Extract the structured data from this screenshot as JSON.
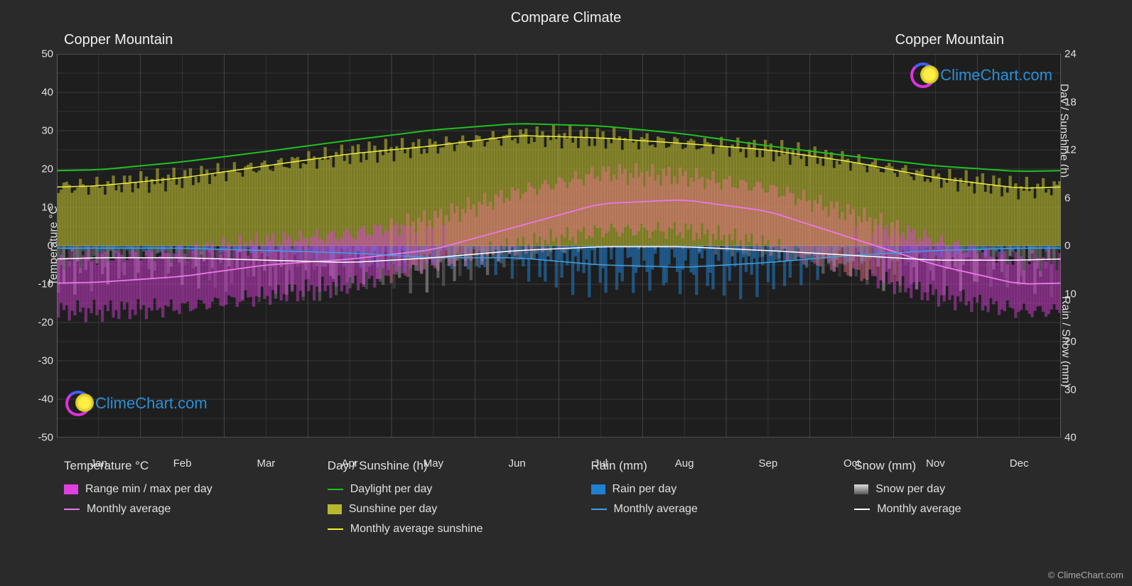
{
  "title": "Compare Climate",
  "location_left": "Copper Mountain",
  "location_right": "Copper Mountain",
  "watermark_text": "ClimeChart.com",
  "copyright": "© ClimeChart.com",
  "axes": {
    "left_label": "Temperature °C",
    "right_label_top": "Day / Sunshine (h)",
    "right_label_bot": "Rain / Snow (mm)",
    "left_min": -50,
    "left_max": 50,
    "left_step": 10,
    "right_top_min": 0,
    "right_top_max": 24,
    "right_top_step": 6,
    "right_bot_min": 0,
    "right_bot_max": 40,
    "right_bot_step": 10,
    "months": [
      "Jan",
      "Feb",
      "Mar",
      "Apr",
      "May",
      "Jun",
      "Jul",
      "Aug",
      "Sep",
      "Oct",
      "Nov",
      "Dec"
    ]
  },
  "colors": {
    "background": "#2a2a2a",
    "grid": "#555555",
    "grid_minor": "#444444",
    "text": "#e0e0e0",
    "temp_range": "#e040e0",
    "temp_range_warm": "#f07090",
    "temp_avg_line": "#e878e8",
    "daylight_line": "#20c020",
    "sunshine_area": "#b8b830",
    "sunshine_line": "#eeee40",
    "rain_bar": "#2080d0",
    "rain_line": "#40a0e0",
    "snow_bar": "#888888",
    "snow_line": "#ffffff",
    "watermark": "#2a8fd6"
  },
  "series": {
    "daylight_h": [
      9.5,
      10.5,
      11.8,
      13.2,
      14.5,
      15.3,
      15.0,
      14.0,
      12.5,
      11.2,
      10.0,
      9.3
    ],
    "sunshine_h": [
      7.5,
      8.5,
      10.0,
      11.5,
      12.5,
      13.8,
      13.5,
      12.8,
      12.0,
      10.5,
      8.5,
      7.2
    ],
    "temp_avg_c": [
      -9.5,
      -8.0,
      -5.0,
      -3.5,
      -1.0,
      5.0,
      11.0,
      12.0,
      9.0,
      2.0,
      -5.0,
      -10.0
    ],
    "temp_max_c": [
      -3,
      -2,
      1,
      3,
      7,
      14,
      19,
      18,
      15,
      8,
      1,
      -4
    ],
    "temp_min_c": [
      -17,
      -16,
      -13,
      -10,
      -5,
      0,
      4,
      4,
      0,
      -7,
      -13,
      -17
    ],
    "rain_mm": [
      0.5,
      0.5,
      1.0,
      1.5,
      2.5,
      2.5,
      4.0,
      4.5,
      3.5,
      2.0,
      1.0,
      0.5
    ],
    "snow_avg_mm": [
      2.5,
      2.5,
      3.0,
      3.5,
      2.5,
      1.0,
      0.2,
      0.2,
      1.0,
      2.0,
      3.0,
      3.0
    ]
  },
  "legend": {
    "temp_heading": "Temperature °C",
    "temp_range": "Range min / max per day",
    "temp_avg": "Monthly average",
    "day_heading": "Day / Sunshine (h)",
    "daylight": "Daylight per day",
    "sunshine": "Sunshine per day",
    "sunshine_avg": "Monthly average sunshine",
    "rain_heading": "Rain (mm)",
    "rain_day": "Rain per day",
    "rain_avg": "Monthly average",
    "snow_heading": "Snow (mm)",
    "snow_day": "Snow per day",
    "snow_avg": "Monthly average"
  }
}
